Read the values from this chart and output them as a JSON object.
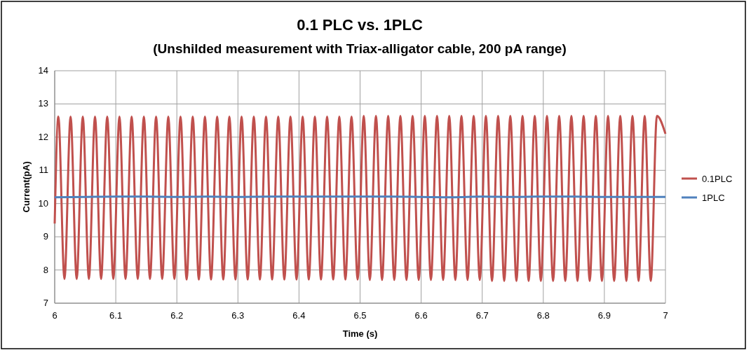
{
  "chart_data": {
    "type": "line",
    "title": "0.1 PLC vs. 1PLC",
    "subtitle": "(Unshilded measurement with Triax-alligator cable, 200 pA range)",
    "xlabel": "Time (s)",
    "ylabel": "Current(pA)",
    "xlim": [
      6,
      7
    ],
    "xticks": [
      6,
      6.1,
      6.2,
      6.3,
      6.4,
      6.5,
      6.6,
      6.7,
      6.8,
      6.9,
      7
    ],
    "ylim": [
      7,
      14
    ],
    "yticks": [
      7,
      8,
      9,
      10,
      11,
      12,
      13,
      14
    ],
    "grid": true,
    "legend": "right",
    "marker": "none",
    "line_style": "solid",
    "series": [
      {
        "name": "0.1PLC",
        "color": "#c0504d",
        "x": [
          6,
          6.006,
          6.016,
          6.026,
          6.036,
          6.046,
          6.056,
          6.066,
          6.076,
          6.086,
          6.096,
          6.106,
          6.116,
          6.126,
          6.136,
          6.146,
          6.156,
          6.166,
          6.176,
          6.186,
          6.196,
          6.206,
          6.216,
          6.226,
          6.236,
          6.246,
          6.256,
          6.266,
          6.276,
          6.286,
          6.296,
          6.306,
          6.316,
          6.326,
          6.336,
          6.346,
          6.356,
          6.366,
          6.376,
          6.386,
          6.396,
          6.406,
          6.416,
          6.426,
          6.436,
          6.446,
          6.456,
          6.466,
          6.476,
          6.486,
          6.496,
          6.506,
          6.516,
          6.526,
          6.536,
          6.546,
          6.556,
          6.566,
          6.576,
          6.586,
          6.596,
          6.606,
          6.616,
          6.626,
          6.636,
          6.646,
          6.656,
          6.666,
          6.676,
          6.686,
          6.696,
          6.706,
          6.716,
          6.726,
          6.736,
          6.746,
          6.756,
          6.766,
          6.776,
          6.786,
          6.796,
          6.806,
          6.816,
          6.826,
          6.836,
          6.846,
          6.856,
          6.866,
          6.876,
          6.886,
          6.896,
          6.906,
          6.916,
          6.926,
          6.936,
          6.946,
          6.956,
          6.966,
          6.976,
          6.986,
          7
        ],
        "values": [
          9.4,
          12.62,
          7.73,
          12.62,
          7.73,
          12.62,
          7.73,
          12.62,
          7.73,
          12.62,
          7.73,
          12.62,
          7.73,
          12.62,
          7.73,
          12.62,
          7.73,
          12.62,
          7.73,
          12.62,
          7.73,
          12.62,
          7.71,
          12.62,
          7.71,
          12.62,
          7.71,
          12.62,
          7.71,
          12.62,
          7.71,
          12.62,
          7.71,
          12.62,
          7.71,
          12.62,
          7.71,
          12.62,
          7.71,
          12.62,
          7.71,
          12.62,
          7.71,
          12.62,
          7.71,
          12.62,
          7.71,
          12.62,
          7.71,
          12.62,
          7.71,
          12.64,
          7.7,
          12.64,
          7.7,
          12.64,
          7.7,
          12.64,
          7.7,
          12.64,
          7.7,
          12.64,
          7.7,
          12.64,
          7.7,
          12.64,
          7.7,
          12.64,
          7.7,
          12.64,
          7.7,
          12.64,
          7.67,
          12.64,
          7.67,
          12.64,
          7.67,
          12.64,
          7.67,
          12.64,
          7.67,
          12.64,
          7.67,
          12.64,
          7.67,
          12.64,
          7.67,
          12.64,
          7.67,
          12.64,
          7.67,
          12.64,
          7.67,
          12.64,
          7.67,
          12.64,
          7.67,
          12.64,
          7.67,
          12.64,
          12.1
        ]
      },
      {
        "name": "1PLC",
        "color": "#4f81bd",
        "x": [
          6,
          6.05,
          6.1,
          6.15,
          6.2,
          6.25,
          6.3,
          6.35,
          6.4,
          6.45,
          6.5,
          6.55,
          6.6,
          6.65,
          6.7,
          6.75,
          6.8,
          6.85,
          6.9,
          6.95,
          7
        ],
        "values": [
          10.19,
          10.2,
          10.21,
          10.21,
          10.2,
          10.21,
          10.2,
          10.21,
          10.21,
          10.21,
          10.21,
          10.21,
          10.2,
          10.19,
          10.21,
          10.2,
          10.21,
          10.21,
          10.2,
          10.2,
          10.2
        ]
      }
    ]
  }
}
